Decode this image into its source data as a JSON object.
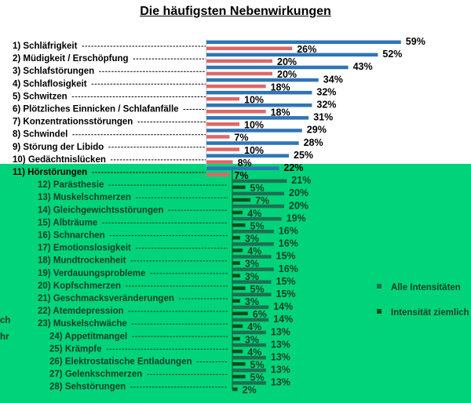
{
  "title": "Die häufigsten Nebenwirkungen",
  "colors": {
    "white_bg": "#ffffff",
    "green_bg": "#00d37a",
    "series_all_light": "#2e75b6",
    "series_strong_light": "#e06666",
    "series_all_dark": "#1f6f50",
    "series_strong_dark": "#0b4d1c"
  },
  "chart_data": {
    "type": "bar",
    "orientation": "horizontal",
    "title": "Die häufigsten Nebenwirkungen",
    "categories": [
      "1) Schläfrigkeit",
      "2) Müdigkeit / Erschöpfung",
      "3) Schlafstörungen",
      "4) Schlaflosigkeit",
      "5) Schwitzen",
      "6) Plötzliches Einnicken / Schlafanfälle",
      "7) Konzentrationsstörungen",
      "8) Schwindel",
      "9) Störung der Libido",
      "10) Gedächtnislücken",
      "11) Hörstörungen",
      "12) Parästhesie",
      "13) Muskelschmerzen",
      "14) Gleichgewichtsstörungen",
      "15) Albträume",
      "16) Schnarchen",
      "17) Emotionslosigkeit",
      "18) Mundtrockenheit",
      "19) Verdauungsprobleme",
      "20) Kopfschmerzen",
      "21) Geschmacksveränderungen",
      "22) Atemdepression",
      "23) Muskelschwäche",
      "24) Appetitmangel",
      "25) Krämpfe",
      "26) Elektrostatische Entladungen",
      "27) Gelenkschmerzen",
      "28) Sehstörungen"
    ],
    "series": [
      {
        "name": "Alle Intensitäten",
        "values": [
          59,
          52,
          43,
          34,
          32,
          32,
          31,
          29,
          28,
          25,
          22,
          21,
          20,
          20,
          19,
          16,
          16,
          15,
          16,
          15,
          15,
          14,
          14,
          13,
          13,
          13,
          13,
          13
        ]
      },
      {
        "name": "Intensität ziemlich stark oder mehr",
        "values": [
          26,
          20,
          20,
          18,
          10,
          18,
          10,
          7,
          10,
          8,
          7,
          5,
          7,
          4,
          5,
          3,
          4,
          3,
          3,
          5,
          3,
          6,
          4,
          3,
          4,
          5,
          5,
          2
        ]
      }
    ],
    "xlim": [
      0,
      60
    ],
    "legend": {
      "position": "right",
      "entries": [
        "Alle Intensitäten",
        "Intensität ziemlich stark oder mehr"
      ]
    },
    "fragments": {
      "left_edge": [
        "ch",
        "hr"
      ]
    }
  }
}
